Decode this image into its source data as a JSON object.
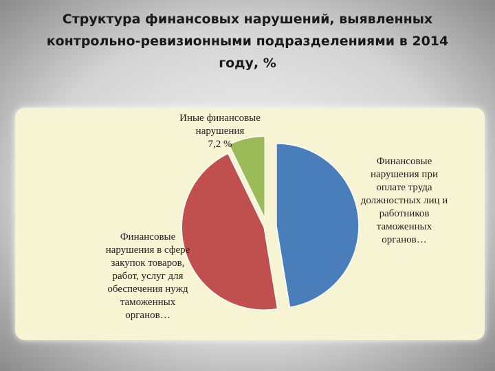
{
  "chart_data": {
    "type": "pie",
    "title": "Структура финансовых нарушений, выявленных контрольно-ревизионными подразделениями в 2014 году, %",
    "categories": [
      "Финансовые нарушения при оплате труда должностных лиц и работников таможенных органов…",
      "Финансовые нарушения в сфере закупок товаров, работ, услуг для обеспечения нужд таможенных органов…",
      "Иные финансовые нарушения"
    ],
    "values": [
      47.4,
      45.4,
      7.2
    ],
    "value_labels": [
      null,
      null,
      "7,2 %"
    ],
    "colors": [
      "#4a7ebb",
      "#c0504d",
      "#9bbb59"
    ]
  }
}
